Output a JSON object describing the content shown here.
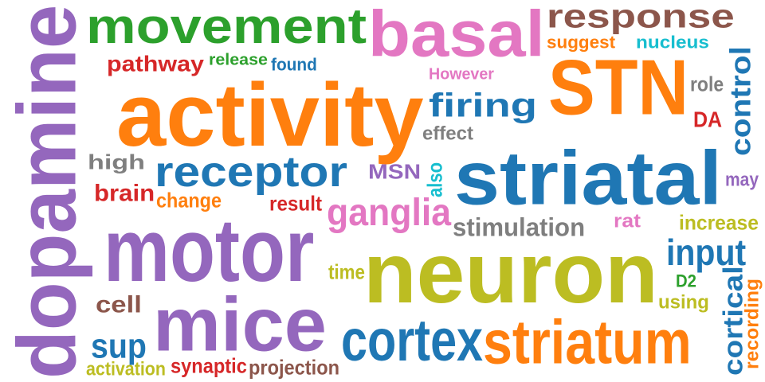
{
  "palette": {
    "purple": "#9467bd",
    "green": "#2ca02c",
    "pink": "#e377c2",
    "brown": "#8c564b",
    "orange": "#ff7f0e",
    "blue": "#1f77b4",
    "cyan": "#17becf",
    "red": "#d62728",
    "gray": "#7f7f7f",
    "olive": "#bcbd22"
  },
  "words": [
    {
      "text": "dopamine",
      "color": "purple",
      "vertical": true
    },
    {
      "text": "movement",
      "color": "green"
    },
    {
      "text": "basal",
      "color": "pink"
    },
    {
      "text": "response",
      "color": "brown"
    },
    {
      "text": "suggest",
      "color": "orange"
    },
    {
      "text": "nucleus",
      "color": "cyan"
    },
    {
      "text": "pathway",
      "color": "red"
    },
    {
      "text": "release",
      "color": "green"
    },
    {
      "text": "found",
      "color": "blue"
    },
    {
      "text": "However",
      "color": "pink"
    },
    {
      "text": "STN",
      "color": "orange"
    },
    {
      "text": "control",
      "color": "blue",
      "vertical": true
    },
    {
      "text": "activity",
      "color": "orange"
    },
    {
      "text": "firing",
      "color": "blue"
    },
    {
      "text": "role",
      "color": "gray"
    },
    {
      "text": "DA",
      "color": "red"
    },
    {
      "text": "effect",
      "color": "gray"
    },
    {
      "text": "high",
      "color": "gray"
    },
    {
      "text": "receptor",
      "color": "blue"
    },
    {
      "text": "striatal",
      "color": "blue"
    },
    {
      "text": "MSN",
      "color": "purple"
    },
    {
      "text": "also",
      "color": "cyan",
      "vertical": true
    },
    {
      "text": "may",
      "color": "purple"
    },
    {
      "text": "brain",
      "color": "red"
    },
    {
      "text": "change",
      "color": "orange"
    },
    {
      "text": "result",
      "color": "red"
    },
    {
      "text": "ganglia",
      "color": "pink"
    },
    {
      "text": "stimulation",
      "color": "gray"
    },
    {
      "text": "rat",
      "color": "pink"
    },
    {
      "text": "increase",
      "color": "olive"
    },
    {
      "text": "motor",
      "color": "purple"
    },
    {
      "text": "input",
      "color": "blue"
    },
    {
      "text": "neuron",
      "color": "olive"
    },
    {
      "text": "time",
      "color": "olive"
    },
    {
      "text": "D2",
      "color": "green"
    },
    {
      "text": "cortical",
      "color": "blue",
      "vertical": true
    },
    {
      "text": "recording",
      "color": "orange",
      "vertical": true
    },
    {
      "text": "cell",
      "color": "brown"
    },
    {
      "text": "mice",
      "color": "purple"
    },
    {
      "text": "using",
      "color": "olive"
    },
    {
      "text": "sup",
      "color": "blue"
    },
    {
      "text": "cortex",
      "color": "blue"
    },
    {
      "text": "striatum",
      "color": "orange"
    },
    {
      "text": "activation",
      "color": "olive"
    },
    {
      "text": "synaptic",
      "color": "red"
    },
    {
      "text": "projection",
      "color": "brown"
    }
  ]
}
